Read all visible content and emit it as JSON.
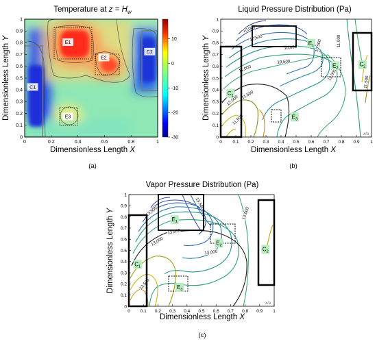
{
  "panels": [
    {
      "caption": "(a)",
      "title_main": "Temperature at ",
      "title_var": "z",
      "title_eq": " = ",
      "title_h": "H",
      "title_sub": "w",
      "xlabel_text": "Dimensionless Length ",
      "xlabel_var": "X",
      "ylabel_text": "Dimensionless Length ",
      "ylabel_var": "Y"
    },
    {
      "caption": "(b)",
      "title": "Liquid Pressure Distribution (Pa)",
      "xlabel_text": "Dimensionless Length ",
      "xlabel_var": "X",
      "ylabel_text": "Dimensionless Length ",
      "ylabel_var": "Y",
      "corner_note": "x/a"
    },
    {
      "caption": "(c)",
      "title": "Vapor Pressure Distribution (Pa)",
      "xlabel_text": "Dimensionless Length ",
      "xlabel_var": "X",
      "ylabel_text": "Dimensionless Length ",
      "ylabel_var": "Y",
      "corner_note": "x/a"
    }
  ],
  "chart_data": [
    {
      "type": "heatmap",
      "title": "Temperature at z = H_w",
      "xlabel": "Dimensionless Length X",
      "ylabel": "Dimensionless Length Y",
      "xlim": [
        0,
        1
      ],
      "ylim": [
        0,
        1
      ],
      "x_ticks": [
        "0",
        "0.2",
        "0.4",
        "0.6",
        "0.8",
        "1"
      ],
      "y_ticks": [
        "0",
        "0.1",
        "0.2",
        "0.3",
        "0.4",
        "0.5",
        "0.6",
        "0.7",
        "0.8",
        "0.9",
        "1"
      ],
      "colorbar": {
        "range": [
          -30,
          18
        ],
        "ticks": [
          "10",
          "0",
          "-10",
          "-20",
          "-30"
        ],
        "colormap": "jet"
      },
      "regions": [
        {
          "label": "E1",
          "kind": "hot",
          "x": [
            0.2,
            0.45
          ],
          "y": [
            0.68,
            0.93
          ]
        },
        {
          "label": "E2",
          "kind": "hot",
          "x": [
            0.52,
            0.67
          ],
          "y": [
            0.6,
            0.75
          ]
        },
        {
          "label": "E3",
          "kind": "warm",
          "x": [
            0.25,
            0.4
          ],
          "y": [
            0.1,
            0.25
          ]
        },
        {
          "label": "C1",
          "kind": "cold",
          "x": [
            0.0,
            0.12
          ],
          "y": [
            0.1,
            0.75
          ]
        },
        {
          "label": "C2",
          "kind": "cold",
          "x": [
            0.88,
            1.0
          ],
          "y": [
            0.55,
            0.9
          ]
        }
      ]
    },
    {
      "type": "line",
      "title": "Liquid Pressure Distribution (Pa)",
      "xlabel": "Dimensionless Length X",
      "ylabel": "Dimensionless Length Y",
      "xlim": [
        0,
        1
      ],
      "ylim": [
        0,
        1
      ],
      "x_ticks": [
        "0",
        "0.1",
        "0.2",
        "0.3",
        "0.4",
        "0.5",
        "0.6",
        "0.7",
        "0.8",
        "0.9",
        "1"
      ],
      "y_ticks": [
        "0",
        "0.1",
        "0.2",
        "0.3",
        "0.4",
        "0.5",
        "0.6",
        "0.7",
        "0.8",
        "0.9",
        "1"
      ],
      "contour_labels": [
        "10,000",
        "10,500",
        "10,000",
        "10,500",
        "11,000",
        "10,500",
        "11,000",
        "11,500",
        "12,000",
        "11,000",
        "11,500",
        "11,500"
      ],
      "regions": [
        {
          "label": "E",
          "sub": "1",
          "x": [
            0.42,
            0.78
          ],
          "y": [
            0.67,
            0.92
          ]
        },
        {
          "label": "E",
          "sub": "2",
          "x": [
            0.67,
            0.85
          ],
          "y": [
            0.53,
            0.68
          ]
        },
        {
          "label": "E",
          "sub": "3",
          "x": [
            0.42,
            0.56
          ],
          "y": [
            0.11,
            0.23
          ]
        },
        {
          "label": "C",
          "sub": "1",
          "x": [
            0.0,
            0.13
          ],
          "y": [
            0.0,
            0.74
          ]
        },
        {
          "label": "C",
          "sub": "2",
          "x": [
            0.88,
            1.0
          ],
          "y": [
            0.37,
            0.86
          ]
        }
      ]
    },
    {
      "type": "line",
      "title": "Vapor Pressure Distribution (Pa)",
      "xlabel": "Dimensionless Length X",
      "ylabel": "Dimensionless Length Y",
      "xlim": [
        0,
        1
      ],
      "ylim": [
        0,
        1
      ],
      "x_ticks": [
        "0",
        "0.1",
        "0.2",
        "0.3",
        "0.4",
        "0.5",
        "0.6",
        "0.7",
        "0.8",
        "0.9",
        "1"
      ],
      "y_ticks": [
        "0",
        "0.1",
        "0.2",
        "0.3",
        "0.4",
        "0.5",
        "0.6",
        "0.7",
        "0.8",
        "0.9",
        "1"
      ],
      "contour_labels": [
        "13,500",
        "13,500",
        "13,500",
        "13,000",
        "13,000",
        "13,000",
        "12,500"
      ],
      "regions": [
        {
          "label": "E",
          "sub": "1",
          "x": [
            0.2,
            0.43
          ],
          "y": [
            0.62,
            0.93
          ]
        },
        {
          "label": "E",
          "sub": "2",
          "x": [
            0.54,
            0.7
          ],
          "y": [
            0.48,
            0.65
          ]
        },
        {
          "label": "E",
          "sub": "3",
          "x": [
            0.28,
            0.42
          ],
          "y": [
            0.12,
            0.22
          ]
        },
        {
          "label": "C",
          "sub": "1",
          "x": [
            0.0,
            0.12
          ],
          "y": [
            0.0,
            0.75
          ]
        },
        {
          "label": "C",
          "sub": "2",
          "x": [
            0.88,
            1.0
          ],
          "y": [
            0.16,
            0.86
          ]
        }
      ]
    }
  ]
}
